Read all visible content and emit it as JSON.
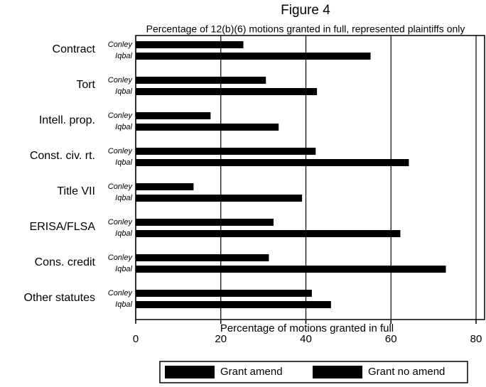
{
  "chart_data": {
    "type": "bar",
    "orientation": "horizontal",
    "title": "Figure 4",
    "subtitle": "Percentage of 12(b)(6) motions granted in full, represented plaintiffs only",
    "x_label": "Percentage of motions granted in full",
    "categories": [
      "Contract",
      "Tort",
      "Intell. prop.",
      "Const. civ. rt.",
      "Title VII",
      "ERISA/FLSA",
      "Cons. credit",
      "Other statutes"
    ],
    "series": [
      {
        "name": "Conley",
        "color": "#000000",
        "values": [
          25.3,
          30.6,
          17.6,
          42.3,
          13.6,
          32.4,
          31.3,
          41.4
        ]
      },
      {
        "name": "Iqbal",
        "color": "#000000",
        "values": [
          55.2,
          42.6,
          33.6,
          64.2,
          39.1,
          62.2,
          72.9,
          45.9
        ]
      }
    ],
    "legend": [
      {
        "name": "Grant amend",
        "color": "#000000"
      },
      {
        "name": "Grant no amend",
        "color": "#000000"
      }
    ],
    "xlim": [
      0,
      82
    ],
    "xticks": [
      0,
      20,
      40,
      60,
      80
    ],
    "grid": true
  }
}
